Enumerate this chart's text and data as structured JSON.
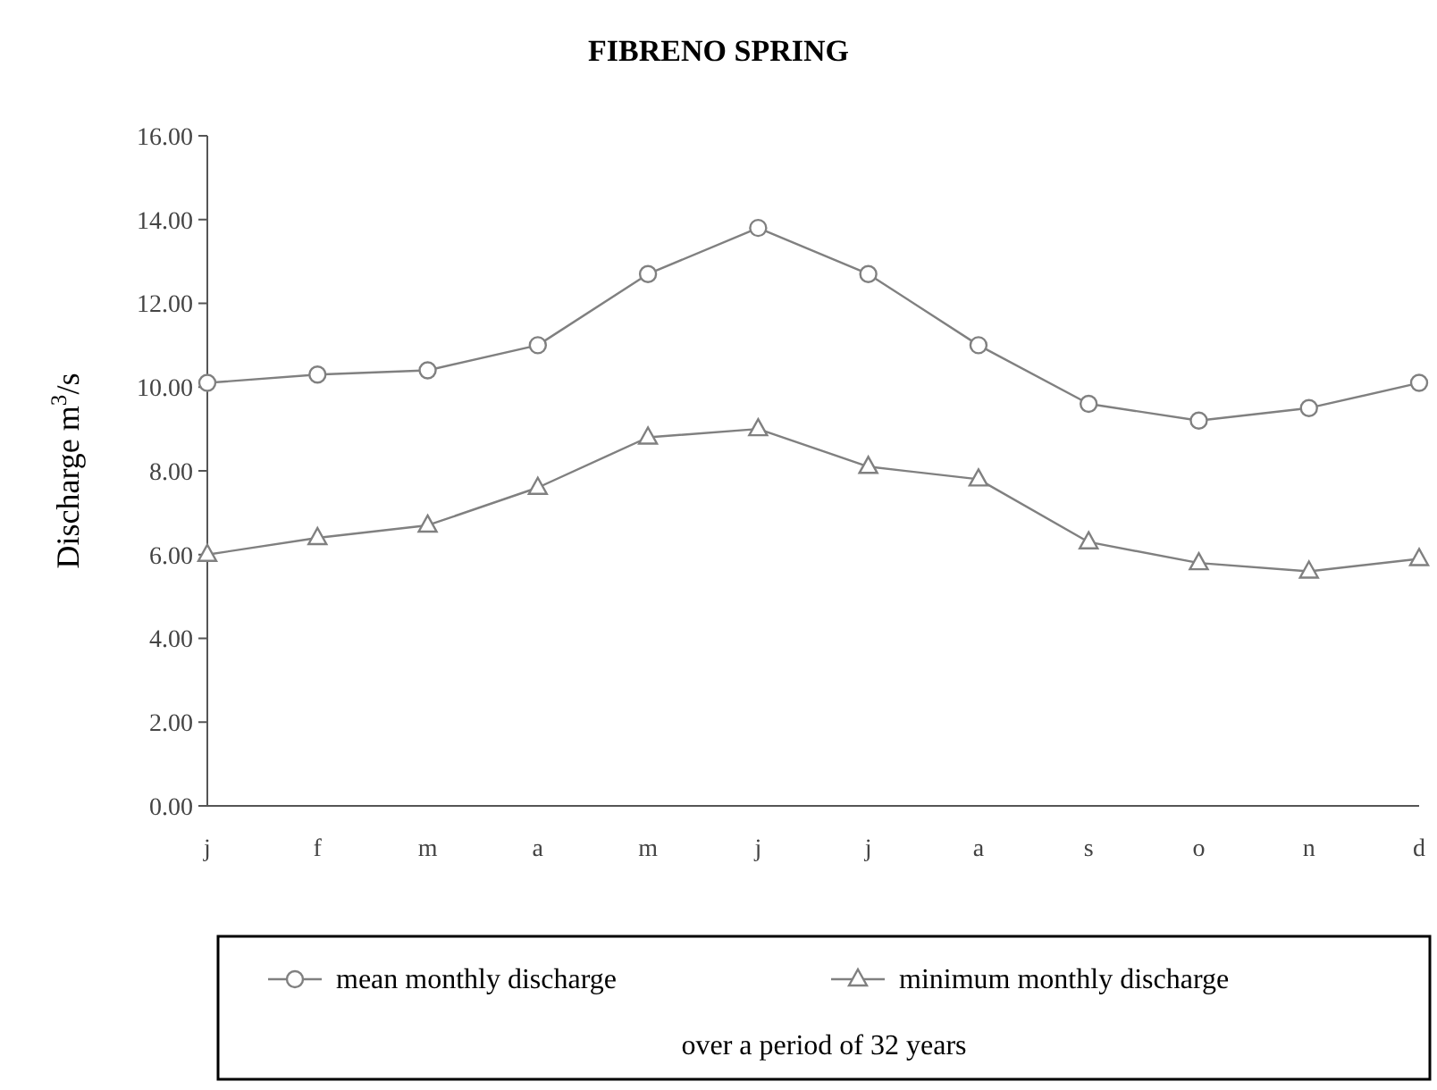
{
  "chart_data": {
    "type": "line",
    "title": "FIBRENO SPRING",
    "ylabel": "Discharge m$^{3}$/s",
    "categories": [
      "j",
      "f",
      "m",
      "a",
      "m",
      "j",
      "j",
      "a",
      "s",
      "o",
      "n",
      "d"
    ],
    "series": [
      {
        "name": "mean monthly discharge",
        "color": "#808080",
        "marker": "circle",
        "values": [
          10.1,
          10.3,
          10.4,
          11.0,
          12.7,
          13.8,
          12.7,
          11.0,
          9.6,
          9.2,
          9.5,
          10.1
        ]
      },
      {
        "name": "minimum monthly discharge",
        "color": "#808080",
        "marker": "triangle",
        "values": [
          6.0,
          6.4,
          6.7,
          7.6,
          8.8,
          9.0,
          8.1,
          7.8,
          6.3,
          5.8,
          5.6,
          5.9
        ]
      }
    ],
    "ylim": [
      0,
      16
    ],
    "yticks": [
      {
        "value": 0,
        "label": "0.00"
      },
      {
        "value": 2,
        "label": "2.00"
      },
      {
        "value": 4,
        "label": "4.00"
      },
      {
        "value": 6,
        "label": "6.00"
      },
      {
        "value": 8,
        "label": "8.00"
      },
      {
        "value": 10,
        "label": "10.00"
      },
      {
        "value": 12,
        "label": "12.00"
      },
      {
        "value": 14,
        "label": "14.00"
      },
      {
        "value": 16,
        "label": "16.00"
      }
    ],
    "grid": false,
    "legend": "bottom",
    "line_style": "solid",
    "annotations": [
      "over a period of 32 years"
    ]
  }
}
